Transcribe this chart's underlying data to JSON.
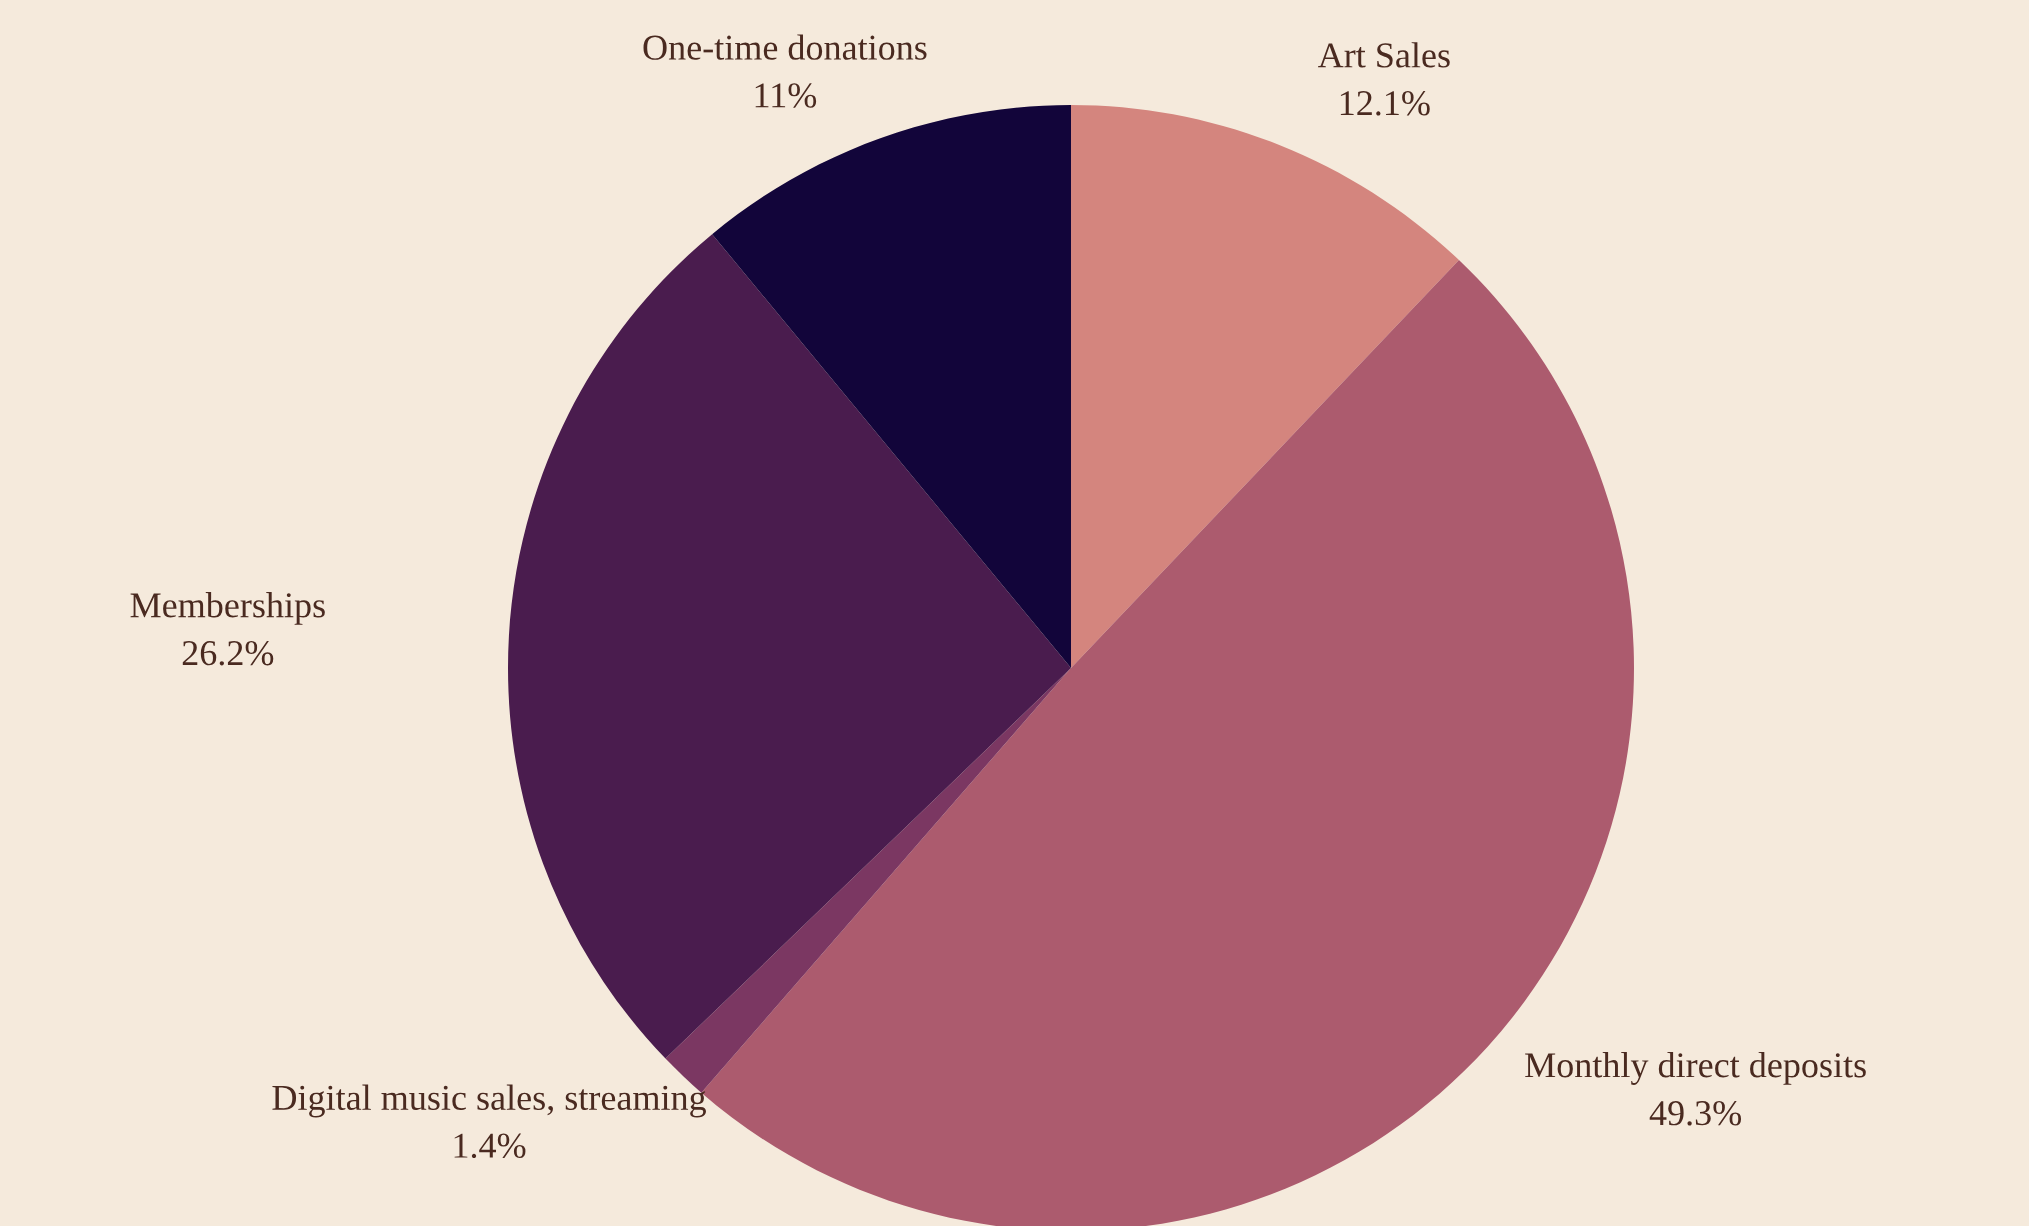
{
  "chart_data": {
    "type": "pie",
    "categories": [
      "Art Sales",
      "Monthly direct deposits",
      "Digital music sales, streaming",
      "Memberships",
      "One-time donations"
    ],
    "values": [
      12.1,
      49.3,
      1.4,
      26.2,
      11
    ],
    "value_labels": [
      "12.1%",
      "49.3%",
      "1.4%",
      "26.2%",
      "11%"
    ],
    "colors": [
      "#d4857e",
      "#ac5b6e",
      "#7b3762",
      "#4a1c4e",
      "#12053a"
    ],
    "legend": false
  }
}
